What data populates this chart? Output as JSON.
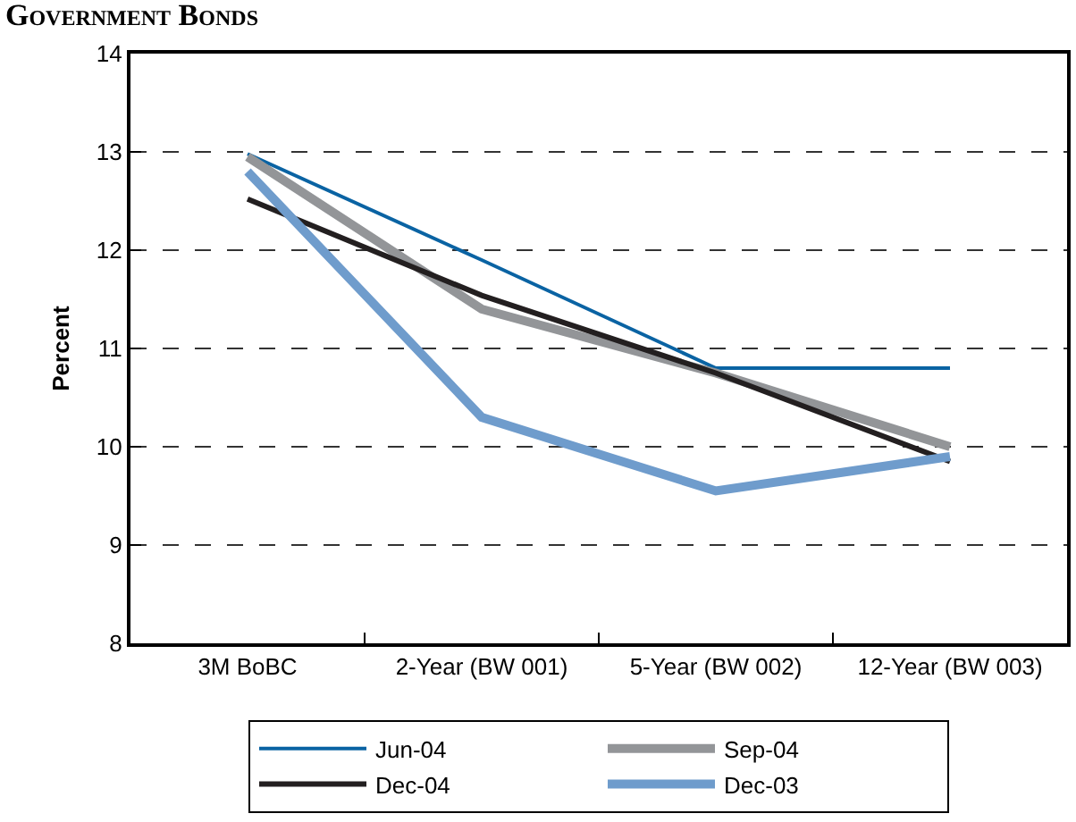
{
  "chart_data": {
    "type": "line",
    "title": "Government Bonds",
    "ylabel": "Percent",
    "categories": [
      "3M BoBC",
      "2-Year (BW 001)",
      "5-Year (BW 002)",
      "12-Year (BW 003)"
    ],
    "series": [
      {
        "name": "Jun-04",
        "color": "#0a63a3",
        "values": [
          12.98,
          11.9,
          10.8,
          10.8
        ]
      },
      {
        "name": "Sep-04",
        "color": "#939598",
        "values": [
          12.95,
          11.4,
          10.75,
          10.0
        ]
      },
      {
        "name": "Dec-04",
        "color": "#231f20",
        "values": [
          12.52,
          11.54,
          10.75,
          9.85
        ]
      },
      {
        "name": "Dec-03",
        "color": "#6f9ccc",
        "values": [
          12.8,
          10.3,
          9.55,
          9.9
        ]
      }
    ],
    "ylim": [
      8,
      14
    ],
    "yticks": [
      8,
      9,
      10,
      11,
      12,
      13,
      14
    ],
    "grid": "y",
    "legend": "bottom",
    "marker": "none",
    "line_style": "solid"
  }
}
